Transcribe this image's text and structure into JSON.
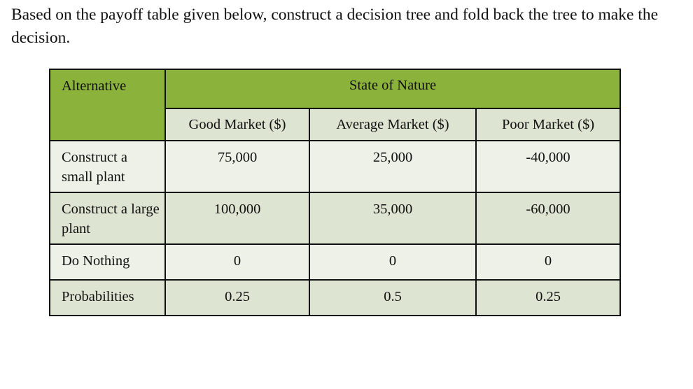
{
  "question": {
    "text": "Based on the payoff table given below, construct a decision tree and fold back the tree to make the decision."
  },
  "table": {
    "colors": {
      "header_green": "#8bb23a",
      "header_light": "#dde4d1",
      "row_light": "#eef1e8",
      "row_alt": "#dde4d1",
      "border": "#111111"
    },
    "alternative_header": "Alternative",
    "state_header": "State of Nature",
    "columns": [
      "Good Market ($)",
      "Average Market ($)",
      "Poor Market ($)"
    ],
    "rows": [
      {
        "label": "Construct a small plant",
        "values": [
          "75,000",
          "25,000",
          "-40,000"
        ]
      },
      {
        "label": "Construct a large plant",
        "values": [
          "100,000",
          "35,000",
          "-60,000"
        ]
      },
      {
        "label": "Do Nothing",
        "values": [
          "0",
          "0",
          "0"
        ]
      },
      {
        "label": "Probabilities",
        "values": [
          "0.25",
          "0.5",
          "0.25"
        ]
      }
    ]
  }
}
